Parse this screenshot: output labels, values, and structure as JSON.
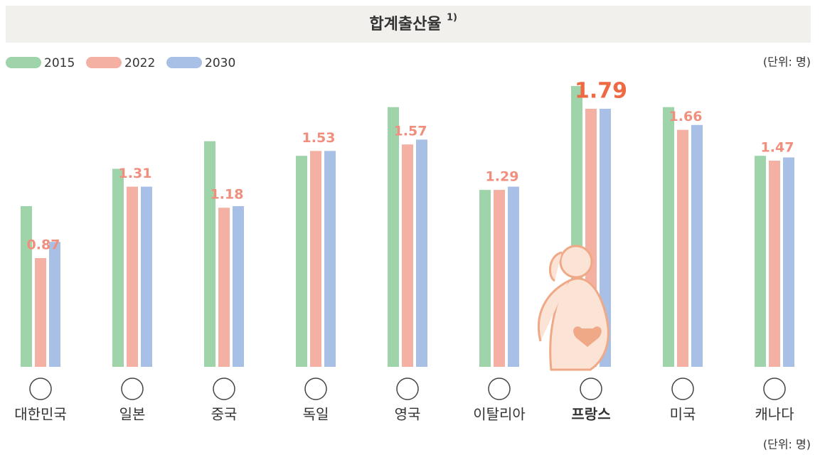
{
  "chart_data": {
    "type": "bar",
    "title": "합계출산율",
    "title_note": "1)",
    "unit": "(단위: 명)",
    "unit_bottom": "(단위: 명)",
    "categories": [
      "대한민국",
      "일본",
      "중국",
      "독일",
      "영국",
      "이탈리아",
      "프랑스",
      "미국",
      "캐나다"
    ],
    "highlight": "프랑스",
    "series": [
      {
        "name": "2015",
        "color": "#9fd4aa",
        "values": [
          1.19,
          1.42,
          1.59,
          1.5,
          1.8,
          1.29,
          1.93,
          1.8,
          1.5
        ]
      },
      {
        "name": "2022",
        "color": "#f3b0a3",
        "values": [
          0.87,
          1.31,
          1.18,
          1.53,
          1.57,
          1.29,
          1.79,
          1.66,
          1.47
        ],
        "labeled": true
      },
      {
        "name": "2030",
        "color": "#a9c0e6",
        "values": [
          0.97,
          1.31,
          1.19,
          1.53,
          1.6,
          1.31,
          1.79,
          1.69,
          1.49
        ]
      }
    ],
    "ylim": [
      0.2,
      2.0
    ]
  }
}
